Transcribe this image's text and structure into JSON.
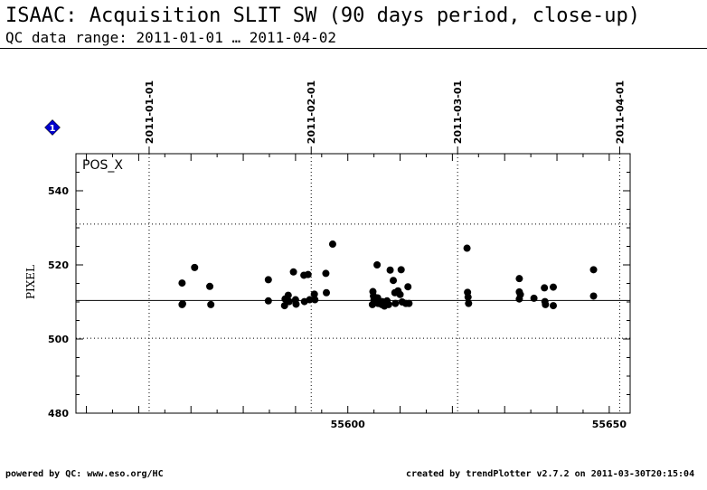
{
  "header": {
    "title": "ISAAC: Acquisition SLIT SW (90 days period, close-up)",
    "subtitle": "QC data range: 2011-01-01 … 2011-04-02"
  },
  "footer": {
    "left": "powered by QC: www.eso.org/HC",
    "right": "created by trendPlotter v2.7.2 on 2011-03-30T20:15:04"
  },
  "marker": {
    "label": "1",
    "color": "#0000cc"
  },
  "chart_data": {
    "type": "scatter",
    "panel_label": "POS_X",
    "ylabel": "PIXEL",
    "xlim": [
      55548,
      55654
    ],
    "ylim": [
      480,
      550
    ],
    "x_ticks": [
      55600,
      55650
    ],
    "y_ticks": [
      480,
      500,
      520,
      540
    ],
    "date_ticks": [
      {
        "label": "2011-01-01",
        "x": 55562
      },
      {
        "label": "2011-02-01",
        "x": 55593
      },
      {
        "label": "2011-03-01",
        "x": 55621
      },
      {
        "label": "2011-04-01",
        "x": 55652
      }
    ],
    "mean": 510.4,
    "limits": [
      500.2,
      531.0
    ],
    "point_color": "#000000",
    "points": [
      [
        55568.3,
        515.1
      ],
      [
        55568.3,
        509.3
      ],
      [
        55568.4,
        509.5
      ],
      [
        55570.7,
        519.3
      ],
      [
        55573.6,
        514.2
      ],
      [
        55573.8,
        509.3
      ],
      [
        55584.8,
        516.0
      ],
      [
        55584.8,
        510.3
      ],
      [
        55587.9,
        509.0
      ],
      [
        55588.0,
        510.8
      ],
      [
        55588.6,
        511.8
      ],
      [
        55588.8,
        510.1
      ],
      [
        55589.6,
        518.1
      ],
      [
        55590.0,
        510.6
      ],
      [
        55590.1,
        509.4
      ],
      [
        55591.6,
        517.2
      ],
      [
        55591.7,
        510.1
      ],
      [
        55592.4,
        517.4
      ],
      [
        55592.7,
        510.6
      ],
      [
        55593.6,
        512.1
      ],
      [
        55593.7,
        510.6
      ],
      [
        55595.8,
        517.7
      ],
      [
        55595.9,
        512.5
      ],
      [
        55597.1,
        525.6
      ],
      [
        55604.7,
        509.3
      ],
      [
        55604.8,
        512.8
      ],
      [
        55604.9,
        511.6
      ],
      [
        55605.0,
        510.6
      ],
      [
        55605.1,
        509.8
      ],
      [
        55605.6,
        520.0
      ],
      [
        55605.7,
        511.1
      ],
      [
        55605.8,
        509.6
      ],
      [
        55606.5,
        509.3
      ],
      [
        55606.6,
        510.1
      ],
      [
        55607.0,
        508.9
      ],
      [
        55607.5,
        510.3
      ],
      [
        55607.8,
        509.3
      ],
      [
        55608.1,
        518.6
      ],
      [
        55608.7,
        515.8
      ],
      [
        55609.0,
        512.5
      ],
      [
        55609.1,
        509.6
      ],
      [
        55609.6,
        513.0
      ],
      [
        55610.0,
        512.0
      ],
      [
        55610.2,
        518.7
      ],
      [
        55610.4,
        510.0
      ],
      [
        55611.1,
        509.6
      ],
      [
        55611.5,
        514.1
      ],
      [
        55611.7,
        509.6
      ],
      [
        55622.8,
        524.5
      ],
      [
        55622.9,
        512.6
      ],
      [
        55623.0,
        511.3
      ],
      [
        55623.1,
        509.6
      ],
      [
        55632.8,
        516.3
      ],
      [
        55632.8,
        512.7
      ],
      [
        55632.8,
        510.8
      ],
      [
        55633.0,
        512.0
      ],
      [
        55635.6,
        511.0
      ],
      [
        55637.6,
        513.8
      ],
      [
        55637.7,
        510.1
      ],
      [
        55637.8,
        509.3
      ],
      [
        55639.3,
        514.0
      ],
      [
        55639.3,
        509.0
      ],
      [
        55647.0,
        518.7
      ],
      [
        55647.0,
        511.6
      ]
    ]
  }
}
